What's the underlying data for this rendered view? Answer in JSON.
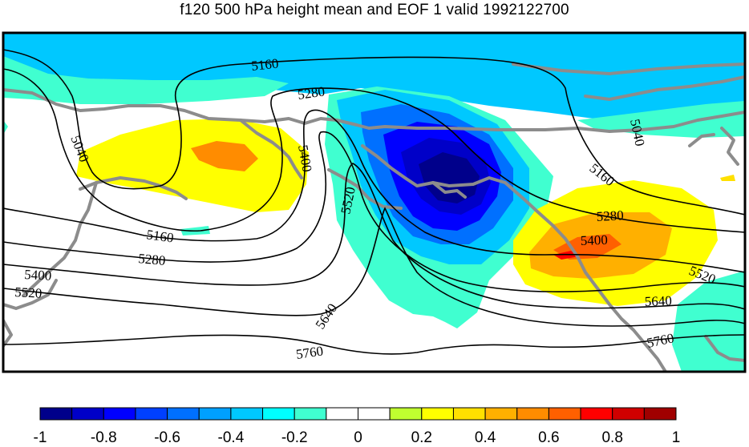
{
  "title": "f120 500 hPa height mean and EOF 1 valid 1992122700",
  "contour_labels": [
    "5160",
    "5280",
    "5400",
    "5520",
    "5040",
    "5160",
    "5280",
    "5400",
    "5520",
    "5640",
    "5760",
    "5040",
    "5160",
    "5280",
    "5400",
    "5520",
    "5640",
    "5760"
  ],
  "colorbar": {
    "tick_labels": [
      "-1",
      "-0.8",
      "-0.6",
      "-0.4",
      "-0.2",
      "0",
      "0.2",
      "0.4",
      "0.6",
      "0.8",
      "1"
    ],
    "colors": [
      "#00008b",
      "#0000c8",
      "#0000ff",
      "#0040ff",
      "#0070ff",
      "#00a0ff",
      "#00c8ff",
      "#00ffff",
      "#40ffd0",
      "#ffffff",
      "#ffffff",
      "#c0ff30",
      "#ffff00",
      "#ffe000",
      "#ffb000",
      "#ff8c00",
      "#ff6000",
      "#ff0000",
      "#d00000",
      "#a00000"
    ]
  },
  "colors": {
    "land_outline": "#8c8c8c",
    "contour_line": "#000000",
    "frame": "#000000"
  }
}
